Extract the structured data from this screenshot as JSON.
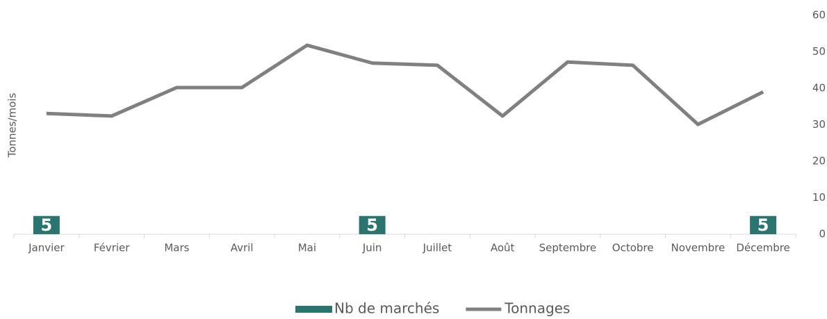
{
  "chart_data": {
    "type": "combo",
    "y_label": "Tonnes/mois",
    "categories": [
      "Janvier",
      "Février",
      "Mars",
      "Avril",
      "Mai",
      "Juin",
      "Juillet",
      "Août",
      "Septembre",
      "Octobre",
      "Novembre",
      "Décembre"
    ],
    "series": [
      {
        "name": "Nb de marchés",
        "type": "bar",
        "color": "#2b7571",
        "values": [
          5,
          null,
          null,
          null,
          null,
          5,
          null,
          null,
          null,
          null,
          null,
          5
        ]
      },
      {
        "name": "Tonnages",
        "type": "line",
        "color": "#808080",
        "values": [
          33.1,
          32.4,
          40.2,
          40.2,
          51.8,
          46.9,
          46.3,
          32.4,
          47.2,
          46.3,
          30.1,
          39.0
        ]
      }
    ],
    "ylim": [
      0,
      60
    ],
    "yticks": [
      0,
      10,
      20,
      30,
      40,
      50,
      60
    ],
    "y_axis_side": "right",
    "grid": false,
    "legend": "bottom"
  }
}
